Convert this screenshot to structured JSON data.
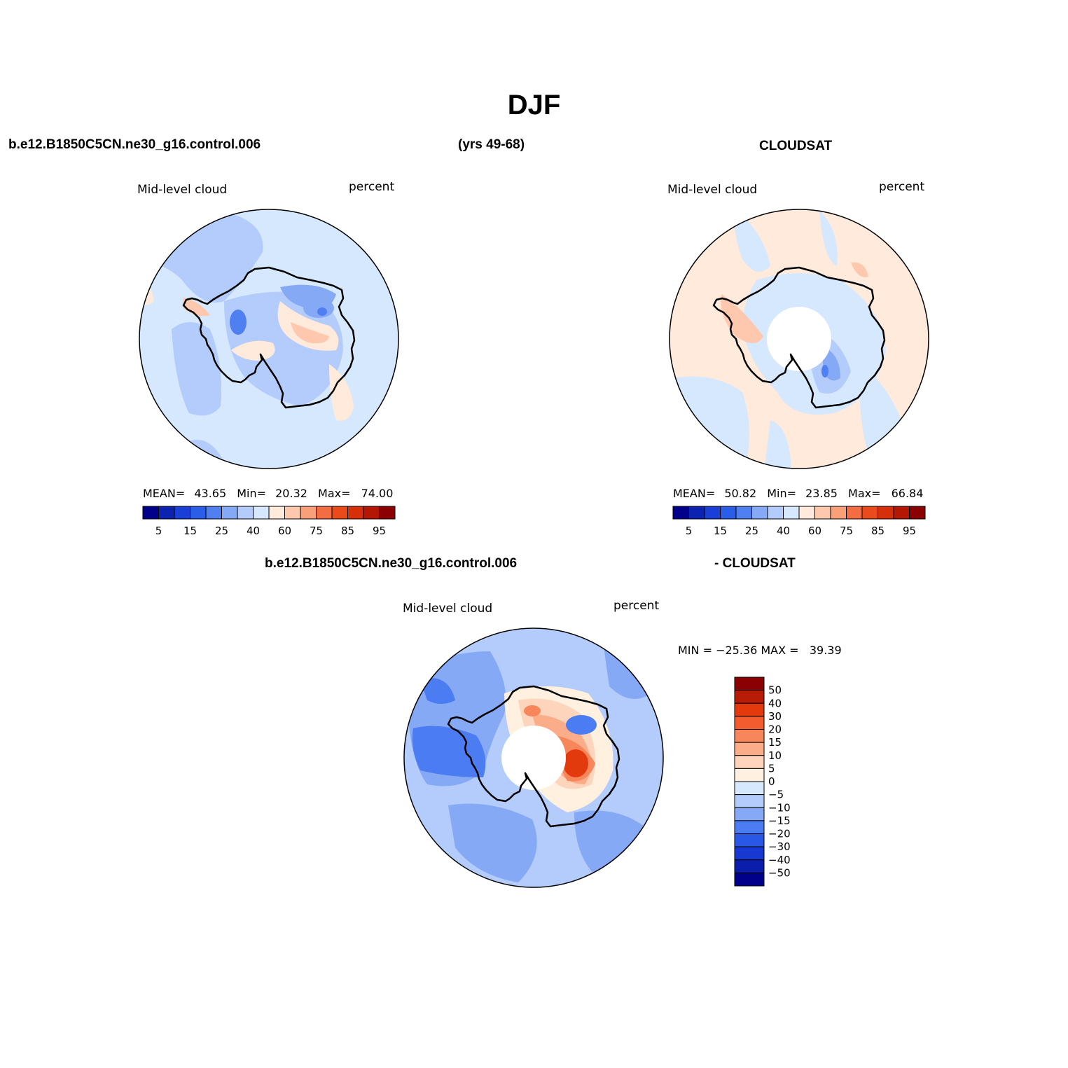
{
  "page_title": "DJF",
  "header": {
    "case": "b.e12.B1850C5CN.ne30_g16.control.006",
    "years": "(yrs 49-68)",
    "obs": "CLOUDSAT"
  },
  "diff_header": {
    "case": "b.e12.B1850C5CN.ne30_g16.control.006",
    "obs": "- CLOUDSAT"
  },
  "colors": {
    "seq": [
      "#00008b",
      "#0c22b0",
      "#1a3fd8",
      "#2b5ee8",
      "#4f7ff1",
      "#86a9f6",
      "#b3ccfb",
      "#d6e8fe",
      "#ffeadb",
      "#fdc8ad",
      "#f9a079",
      "#f36c42",
      "#eb4a1a",
      "#d62f09",
      "#b41805",
      "#8b0000"
    ],
    "diff": [
      "#00008b",
      "#0a1eab",
      "#1838d2",
      "#2a58e6",
      "#4b7cf2",
      "#85a9f7",
      "#b3ccfb",
      "#d6e8fe",
      "#fff0e0",
      "#fdd5bd",
      "#fbac88",
      "#f7865a",
      "#f25c2e",
      "#e23a0c",
      "#b71c06",
      "#8b0000"
    ]
  },
  "panels": [
    {
      "title": "Mid-level cloud",
      "units": "percent",
      "mean_label": "MEAN=",
      "mean": "43.65",
      "min_label": "Min=",
      "min": "20.32",
      "max_label": "Max=",
      "max": "74.00",
      "colorbar_labels": [
        "5",
        "15",
        "25",
        "40",
        "60",
        "75",
        "85",
        "95"
      ]
    },
    {
      "title": "Mid-level cloud",
      "units": "percent",
      "mean_label": "MEAN=",
      "mean": "50.82",
      "min_label": "Min=",
      "min": "23.85",
      "max_label": "Max=",
      "max": "66.84",
      "colorbar_labels": [
        "5",
        "15",
        "25",
        "40",
        "60",
        "75",
        "85",
        "95"
      ]
    }
  ],
  "diff_panel": {
    "title": "Mid-level cloud",
    "units": "percent",
    "minmax_text": "MIN = −25.36 MAX =   39.39",
    "colorbar_labels": [
      "50",
      "40",
      "30",
      "20",
      "15",
      "10",
      "5",
      "0",
      "−5",
      "−10",
      "−15",
      "−20",
      "−30",
      "−40",
      "−50"
    ]
  }
}
